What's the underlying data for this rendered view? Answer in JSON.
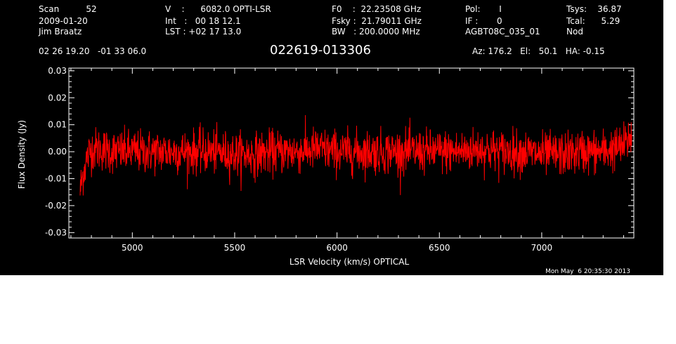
{
  "header": {
    "col1": [
      "Scan          52",
      "2009-01-20",
      "Jim Braatz"
    ],
    "col2": [
      "V    :      6082.0 OPTI-LSR",
      "Int   :   00 18 12.1",
      "LST : +02 17 13.0"
    ],
    "col3": [
      "F0    :  22.23508 GHz",
      "Fsky :  21.79011 GHz",
      "BW   : 200.0000 MHz"
    ],
    "col4": [
      "Pol:       I",
      "IF :       0",
      "AGBT08C_035_01"
    ],
    "col5": [
      "Tsys:    36.87",
      "Tcal:      5.29",
      "Nod"
    ],
    "coords": "02 26 19.20   -01 33 06.0",
    "source": "022619-013306",
    "pointing": "Az: 176.2   El:   50.1   HA: -0.15",
    "timestamp": "Mon May  6 20:35:30 2013"
  },
  "colors": {
    "background": "#000000",
    "axes": "#ffffff",
    "series": "#ff0000"
  },
  "chart_data": {
    "type": "line",
    "xlabel": "LSR Velocity (km/s) OPTICAL",
    "ylabel": "Flux Density (Jy)",
    "xlim": [
      4690,
      7450
    ],
    "ylim": [
      -0.032,
      0.031
    ],
    "xticks": [
      5000,
      5500,
      6000,
      6500,
      7000
    ],
    "yticks": [
      -0.03,
      -0.02,
      -0.01,
      0.0,
      0.01,
      0.02,
      0.03
    ],
    "ytick_labels": [
      "-0.03",
      "-0.02",
      "-0.01",
      "0.00",
      "0.01",
      "0.02",
      "0.03"
    ],
    "series": [
      {
        "noise_sigma": 0.004,
        "x": [
          4745,
          4750,
          4760,
          4770,
          4780,
          4800,
          4850,
          4900,
          4950,
          5000,
          5100,
          5200,
          5300,
          5400,
          5500,
          5600,
          5700,
          5800,
          5900,
          6000,
          6100,
          6200,
          6300,
          6400,
          6500,
          6600,
          6700,
          6800,
          6900,
          7000,
          7100,
          7200,
          7300,
          7350,
          7400,
          7420,
          7440
        ],
        "y": [
          -0.015,
          -0.012,
          -0.008,
          -0.005,
          -0.002,
          0.001,
          0.001,
          0.0,
          0.0,
          0.0,
          0.0,
          0.0,
          0.0,
          0.0,
          -0.001,
          -0.001,
          0.0,
          0.0,
          0.001,
          0.0,
          0.0,
          0.0,
          0.0,
          0.0,
          0.0,
          0.0,
          0.001,
          0.0,
          0.0,
          -0.001,
          -0.001,
          0.0,
          0.0,
          0.001,
          0.002,
          0.004,
          0.007
        ]
      }
    ]
  }
}
